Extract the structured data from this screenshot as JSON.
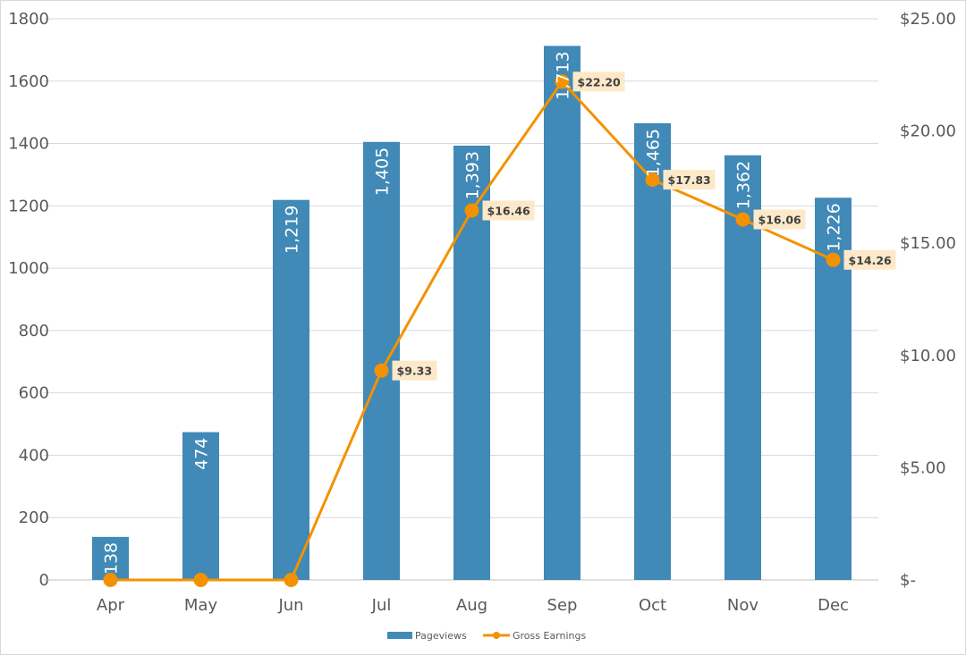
{
  "chart_data": {
    "type": "bar+line",
    "categories": [
      "Apr",
      "May",
      "Jun",
      "Jul",
      "Aug",
      "Sep",
      "Oct",
      "Nov",
      "Dec"
    ],
    "series": [
      {
        "name": "Pageviews",
        "type": "bar",
        "axis": "left",
        "color": "#4189b6",
        "values": [
          138,
          474,
          1219,
          1405,
          1393,
          1713,
          1465,
          1362,
          1226
        ],
        "labels": [
          "138",
          "474",
          "1,219",
          "1,405",
          "1,393",
          "1,713",
          "1,465",
          "1,362",
          "1,226"
        ]
      },
      {
        "name": "Gross Earnings",
        "type": "line",
        "axis": "right",
        "color": "#f39200",
        "values": [
          0,
          0,
          0,
          9.33,
          16.46,
          22.2,
          17.83,
          16.06,
          14.26
        ],
        "labels": [
          "",
          "",
          "",
          "$9.33",
          "$16.46",
          "$22.20",
          "$17.83",
          "$16.06",
          "$14.26"
        ]
      }
    ],
    "y_left": {
      "ylim": [
        0,
        1800
      ],
      "ticks": [
        "0",
        "200",
        "400",
        "600",
        "800",
        "1000",
        "1200",
        "1400",
        "1600",
        "1800"
      ]
    },
    "y_right": {
      "ylim": [
        0,
        25
      ],
      "ticks": [
        "$-",
        "$5.00",
        "$10.00",
        "$15.00",
        "$20.00",
        "$25.00"
      ]
    },
    "grid": true,
    "legend": "bottom",
    "label_box_color": "#fde9c9"
  }
}
